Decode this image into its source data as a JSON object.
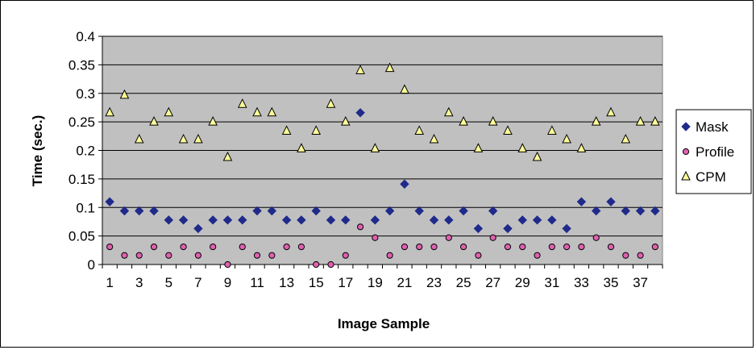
{
  "chart_data": {
    "type": "scatter",
    "title": "",
    "xlabel": "Image Sample",
    "ylabel": "Time (sec.)",
    "ylim": [
      0,
      0.4
    ],
    "yticks": [
      "0",
      "0.05",
      "0.1",
      "0.15",
      "0.2",
      "0.25",
      "0.3",
      "0.35",
      "0.4"
    ],
    "x": [
      1,
      2,
      3,
      4,
      5,
      6,
      7,
      8,
      9,
      10,
      11,
      12,
      13,
      14,
      15,
      16,
      17,
      18,
      19,
      20,
      21,
      22,
      23,
      24,
      25,
      26,
      27,
      28,
      29,
      30,
      31,
      32,
      33,
      34,
      35,
      36,
      37,
      38
    ],
    "xtick_labels": [
      "1",
      "3",
      "5",
      "7",
      "9",
      "11",
      "13",
      "15",
      "17",
      "19",
      "21",
      "23",
      "25",
      "27",
      "29",
      "31",
      "33",
      "35",
      "37"
    ],
    "grid": true,
    "legend_position": "right",
    "series": [
      {
        "name": "Mask",
        "marker": "diamond",
        "color": "#1f2a8a",
        "values": [
          0.11,
          0.094,
          0.094,
          0.094,
          0.078,
          0.078,
          0.063,
          0.078,
          0.078,
          0.078,
          0.094,
          0.094,
          0.078,
          0.078,
          0.094,
          0.078,
          0.078,
          0.266,
          0.078,
          0.094,
          0.141,
          0.094,
          0.078,
          0.078,
          0.094,
          0.063,
          0.094,
          0.063,
          0.078,
          0.078,
          0.078,
          0.063,
          0.11,
          0.094,
          0.11,
          0.094,
          0.094,
          0.094
        ]
      },
      {
        "name": "Profile",
        "marker": "circle",
        "color": "#e060b0",
        "values": [
          0.031,
          0.016,
          0.016,
          0.031,
          0.016,
          0.031,
          0.016,
          0.031,
          0.0,
          0.031,
          0.016,
          0.016,
          0.031,
          0.031,
          0.0,
          0.0,
          0.016,
          0.066,
          0.047,
          0.016,
          0.031,
          0.031,
          0.031,
          0.047,
          0.031,
          0.016,
          0.047,
          0.031,
          0.031,
          0.016,
          0.031,
          0.031,
          0.031,
          0.047,
          0.031,
          0.016,
          0.016,
          0.031
        ]
      },
      {
        "name": "CPM",
        "marker": "triangle",
        "color": "#ffff99",
        "values": [
          0.266,
          0.297,
          0.219,
          0.25,
          0.266,
          0.219,
          0.219,
          0.25,
          0.188,
          0.281,
          0.266,
          0.266,
          0.234,
          0.203,
          0.234,
          0.281,
          0.25,
          0.34,
          0.203,
          0.344,
          0.306,
          0.234,
          0.219,
          0.266,
          0.25,
          0.203,
          0.25,
          0.234,
          0.203,
          0.188,
          0.234,
          0.219,
          0.203,
          0.25,
          0.266,
          0.219,
          0.25,
          0.25
        ]
      }
    ],
    "colors": {
      "plot_background": "#c0c0c0",
      "gridline": "#000000"
    }
  }
}
